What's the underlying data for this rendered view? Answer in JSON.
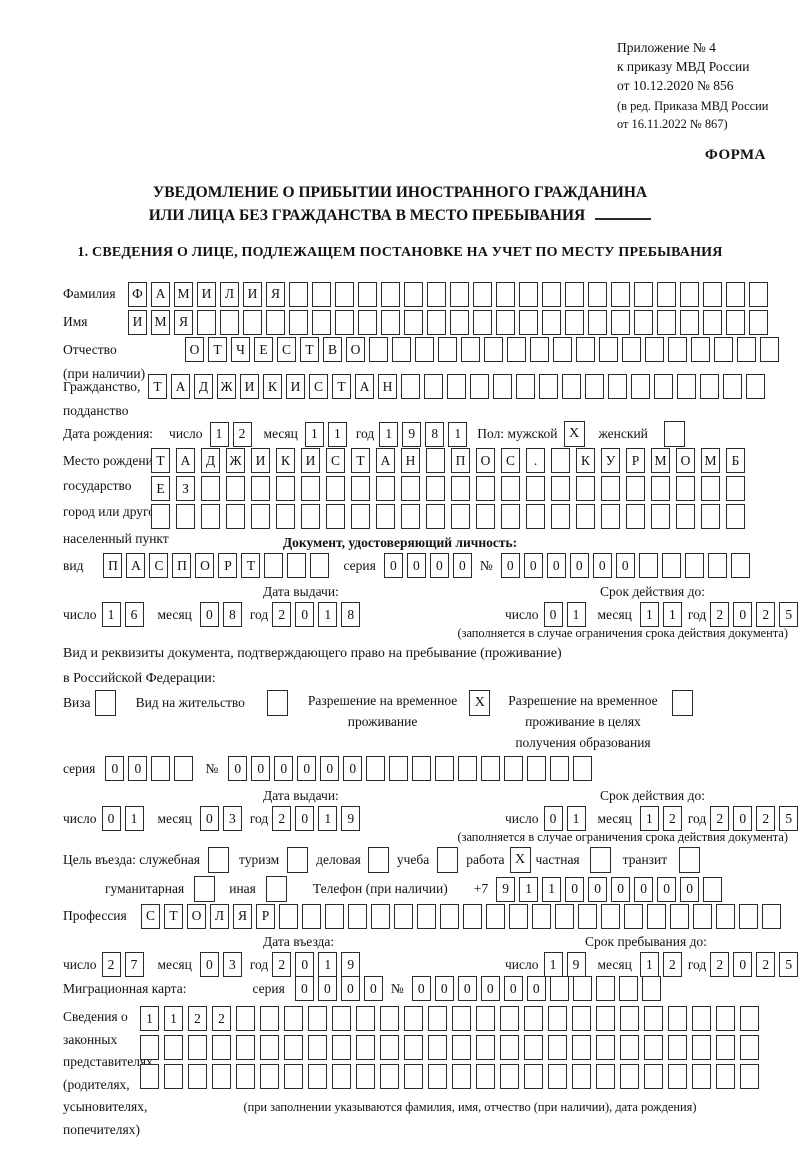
{
  "header": {
    "line1": "Приложение № 4",
    "line2": "к приказу МВД России",
    "line3": "от 10.12.2020 № 856",
    "line4": "(в ред. Приказа МВД России",
    "line5": "от 16.11.2022 № 867)",
    "form_label": "ФОРМА"
  },
  "title": {
    "line1": "УВЕДОМЛЕНИЕ О ПРИБЫТИИ ИНОСТРАННОГО ГРАЖДАНИНА",
    "line2": "ИЛИ ЛИЦА БЕЗ ГРАЖДАНСТВА В МЕСТО ПРЕБЫВАНИЯ"
  },
  "section1_heading": "1. СВЕДЕНИЯ О ЛИЦЕ, ПОДЛЕЖАЩЕМ ПОСТАНОВКЕ НА УЧЕТ ПО МЕСТУ ПРЕБЫВАНИЯ",
  "labels": {
    "day": "число",
    "month": "месяц",
    "year": "год",
    "series": "серия",
    "number": "№"
  },
  "counts": {
    "two": 2,
    "four": 4
  },
  "surname": {
    "label": "Фамилия",
    "value": "ФАМИЛИЯ",
    "cells": 28
  },
  "firstname": {
    "label": "Имя",
    "value": "ИМЯ",
    "cells": 28
  },
  "patronymic": {
    "label1": "Отчество",
    "label2": "(при наличии)",
    "value": "ОТЧЕСТВО",
    "cells": 26
  },
  "citizenship": {
    "label1": "Гражданство,",
    "label2": "подданство",
    "value": "ТАДЖИКИСТАН",
    "cells": 27
  },
  "birth_date": {
    "label": "Дата рождения:",
    "d": "12",
    "m": "11",
    "y": "1981",
    "sex_label": "Пол: мужской",
    "male": "X",
    "female_label": "женский",
    "female": ""
  },
  "birth_place": {
    "label": "Место рождения:",
    "sub1": "государство",
    "sub2": "город или другой",
    "sub3": "населенный пункт",
    "line1": "ТАДЖИКИСТАН ПОС. КУРМОМБ",
    "line2": "ЕЗ",
    "line3": "",
    "cells": 24
  },
  "id_doc": {
    "heading": "Документ, удостоверяющий личность:",
    "kind_label": "вид",
    "kind": "ПАСПОРТ",
    "kind_cells": 10,
    "series": "0000",
    "series_cells": 4,
    "number": "000000",
    "number_cells": 11
  },
  "id_dates": {
    "issue_title": "Дата выдачи:",
    "issue": {
      "d": "16",
      "m": "08",
      "y": "2018"
    },
    "valid_title": "Срок действия до:",
    "valid": {
      "d": "01",
      "m": "11",
      "y": "2025"
    },
    "note": "(заполняется в случае ограничения срока действия документа)"
  },
  "resid": {
    "intro1": "Вид и реквизиты документа, подтверждающего право на пребывание (проживание)",
    "intro2": "в Российской Федерации:",
    "opt1": {
      "label": "Виза",
      "checked": ""
    },
    "opt2": {
      "label": "Вид на жительство",
      "checked": ""
    },
    "opt3": {
      "l1": "Разрешение на временное",
      "l2": "проживание",
      "checked": "X"
    },
    "opt4": {
      "l1": "Разрешение на временное",
      "l2": "проживание в целях",
      "l3": "получения образования",
      "checked": ""
    }
  },
  "resid_serial": {
    "series": "00",
    "series_cells": 4,
    "number": "000000",
    "number_cells": 16
  },
  "resid_dates": {
    "issue_title": "Дата выдачи:",
    "issue": {
      "d": "01",
      "m": "03",
      "y": "2019"
    },
    "valid_title": "Срок действия до:",
    "valid": {
      "d": "01",
      "m": "12",
      "y": "2025"
    },
    "note": "(заполняется в случае ограничения срока действия документа)"
  },
  "purpose": {
    "intro": "Цель въезда: служебная",
    "options": [
      {
        "label": "туризм",
        "checked": ""
      },
      {
        "label": "деловая",
        "checked": ""
      },
      {
        "label": "учеба",
        "checked": ""
      },
      {
        "label": "работа",
        "checked": "X"
      },
      {
        "label": "частная",
        "checked": ""
      },
      {
        "label": "транзит",
        "checked": ""
      }
    ],
    "first_checked": ""
  },
  "purpose2": {
    "opt1": {
      "label": "гуманитарная",
      "checked": ""
    },
    "opt2": {
      "label": "иная",
      "checked": ""
    },
    "phone_label": "Телефон (при наличии)",
    "phone_prefix": "+7",
    "phone": "911000000",
    "phone_cells": 10
  },
  "profession": {
    "label": "Профессия",
    "value": "СТОЛЯР",
    "cells": 28
  },
  "entry_dates": {
    "issue_title": "Дата въезда:",
    "issue": {
      "d": "27",
      "m": "03",
      "y": "2019"
    },
    "valid_title": "Срок пребывания до:",
    "valid": {
      "d": "19",
      "m": "12",
      "y": "2025"
    }
  },
  "migration": {
    "label": "Миграционная карта:",
    "series": "0000",
    "series_cells": 4,
    "number": "000000",
    "number_cells": 11
  },
  "legal": {
    "l1": "Сведения о",
    "l2": "законных",
    "l3": "представителях",
    "l4": "(родителях,",
    "l5": "усыновителях,",
    "l6": "попечителях)",
    "line1": "1122",
    "line2": "",
    "line3": "",
    "cells": 26,
    "note": "(при заполнении указываются фамилия, имя, отчество (при наличии), дата рождения)"
  }
}
